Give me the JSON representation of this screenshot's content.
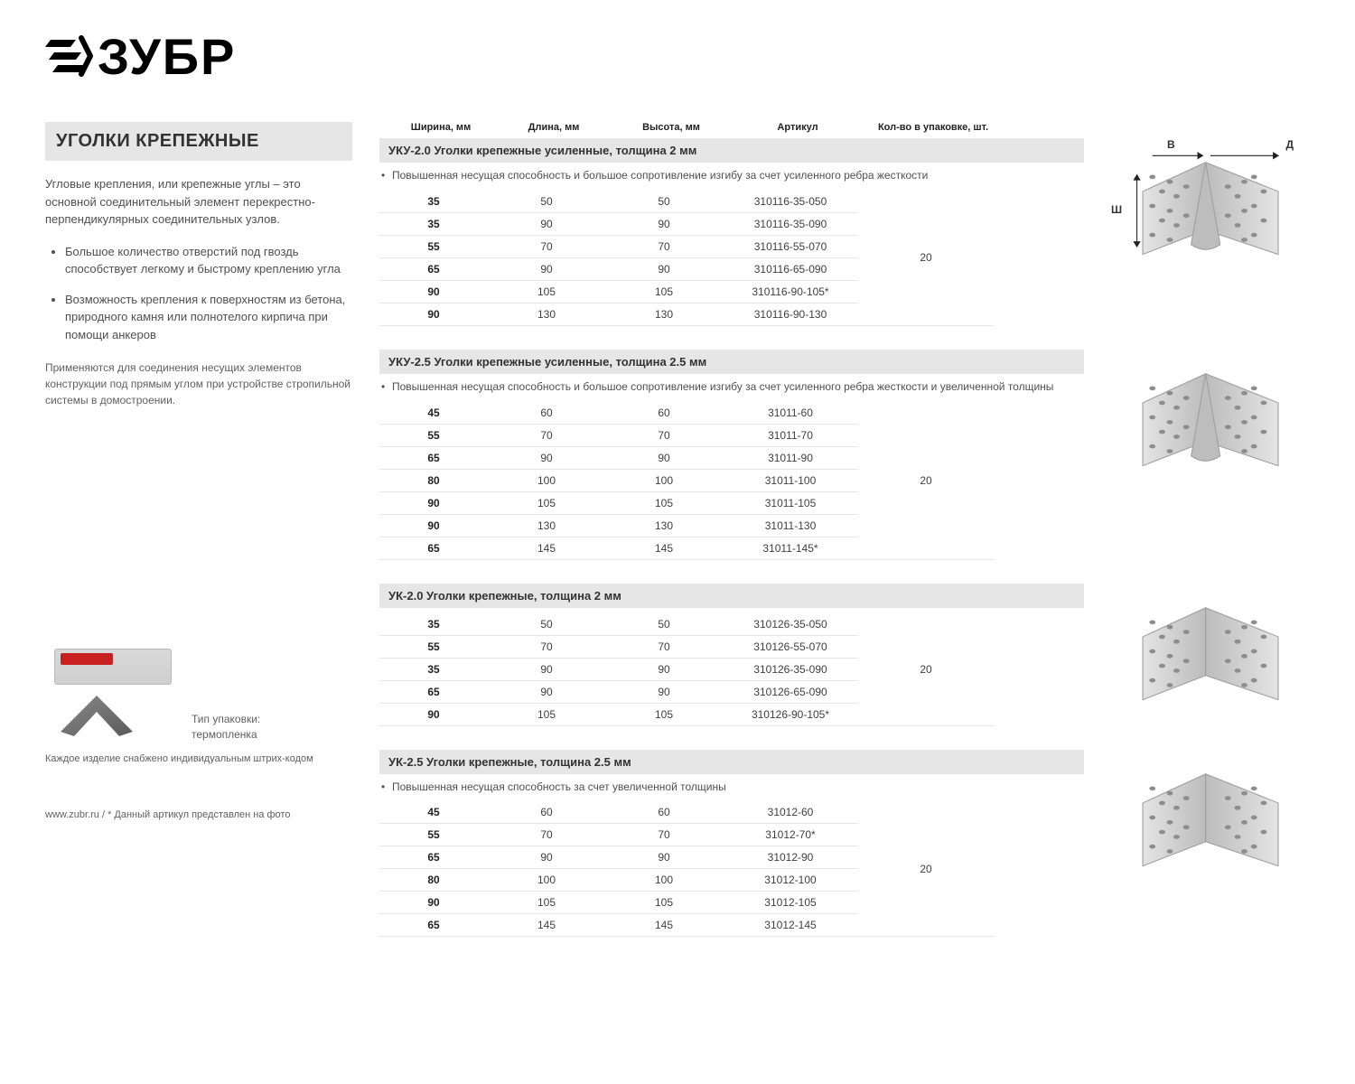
{
  "brand": "ЗУБР",
  "page_title": "УГОЛКИ КРЕПЕЖНЫЕ",
  "intro": "Угловые крепления, или крепежные углы – это основной соединительный элемент перекрестно-перпендикулярных соединительных узлов.",
  "features": [
    "Большое количество отверстий под гвоздь способствует легкому и быстрому креплению угла",
    "Возможность крепления к поверхностям из бетона, природного камня или полнотелого кирпича при помощи анкеров"
  ],
  "usage": "Применяются для соединения несущих элементов конструкции под прямым углом при устройстве стропильной системы в домостроении.",
  "package_caption_line1": "Тип упаковки:",
  "package_caption_line2": "термопленка",
  "barcode_note": "Каждое изделие снабжено индивидуальным штрих-кодом",
  "footer_note": "www.zubr.ru   /   * Данный артикул представлен на фото",
  "column_headers": [
    "Ширина, мм",
    "Длина, мм",
    "Высота, мм",
    "Артикул",
    "Кол-во в упаковке, шт."
  ],
  "dim_labels": {
    "B": "В",
    "D": "Д",
    "SH": "Ш"
  },
  "colors": {
    "header_bg": "#e6e6e6",
    "row_border": "#e6e6e6",
    "text": "#333333",
    "brand_red": "#c82020"
  },
  "sections": [
    {
      "title": "УКУ-2.0  Уголки крепежные усиленные, толщина 2 мм",
      "note": "Повышенная несущая способность и большое сопротивление изгибу за счет усиленного ребра жесткости",
      "pack": "20",
      "reinforced": true,
      "show_dims": true,
      "rows": [
        {
          "w": "35",
          "l": "50",
          "h": "50",
          "art": "310116-35-050"
        },
        {
          "w": "35",
          "l": "90",
          "h": "90",
          "art": "310116-35-090"
        },
        {
          "w": "55",
          "l": "70",
          "h": "70",
          "art": "310116-55-070"
        },
        {
          "w": "65",
          "l": "90",
          "h": "90",
          "art": "310116-65-090"
        },
        {
          "w": "90",
          "l": "105",
          "h": "105",
          "art": "310116-90-105*"
        },
        {
          "w": "90",
          "l": "130",
          "h": "130",
          "art": "310116-90-130"
        }
      ]
    },
    {
      "title": "УКУ-2.5  Уголки крепежные усиленные, толщина 2.5 мм",
      "note": "Повышенная несущая способность и большое сопротивление изгибу за счет усиленного ребра жесткости и увеличенной толщины",
      "pack": "20",
      "reinforced": true,
      "show_dims": false,
      "rows": [
        {
          "w": "45",
          "l": "60",
          "h": "60",
          "art": "31011-60"
        },
        {
          "w": "55",
          "l": "70",
          "h": "70",
          "art": "31011-70"
        },
        {
          "w": "65",
          "l": "90",
          "h": "90",
          "art": "31011-90"
        },
        {
          "w": "80",
          "l": "100",
          "h": "100",
          "art": "31011-100"
        },
        {
          "w": "90",
          "l": "105",
          "h": "105",
          "art": "31011-105"
        },
        {
          "w": "90",
          "l": "130",
          "h": "130",
          "art": "31011-130"
        },
        {
          "w": "65",
          "l": "145",
          "h": "145",
          "art": "31011-145*"
        }
      ]
    },
    {
      "title": "УК-2.0  Уголки крепежные, толщина 2 мм",
      "note": "",
      "pack": "20",
      "reinforced": false,
      "show_dims": false,
      "rows": [
        {
          "w": "35",
          "l": "50",
          "h": "50",
          "art": "310126-35-050"
        },
        {
          "w": "55",
          "l": "70",
          "h": "70",
          "art": "310126-55-070"
        },
        {
          "w": "35",
          "l": "90",
          "h": "90",
          "art": "310126-35-090"
        },
        {
          "w": "65",
          "l": "90",
          "h": "90",
          "art": "310126-65-090"
        },
        {
          "w": "90",
          "l": "105",
          "h": "105",
          "art": "310126-90-105*"
        }
      ]
    },
    {
      "title": "УК-2.5  Уголки крепежные, толщина 2.5 мм",
      "note": "Повышенная несущая способность за счет увеличенной толщины",
      "pack": "20",
      "reinforced": false,
      "show_dims": false,
      "rows": [
        {
          "w": "45",
          "l": "60",
          "h": "60",
          "art": "31012-60"
        },
        {
          "w": "55",
          "l": "70",
          "h": "70",
          "art": "31012-70*"
        },
        {
          "w": "65",
          "l": "90",
          "h": "90",
          "art": "31012-90"
        },
        {
          "w": "80",
          "l": "100",
          "h": "100",
          "art": "31012-100"
        },
        {
          "w": "90",
          "l": "105",
          "h": "105",
          "art": "31012-105"
        },
        {
          "w": "65",
          "l": "145",
          "h": "145",
          "art": "31012-145"
        }
      ]
    }
  ]
}
